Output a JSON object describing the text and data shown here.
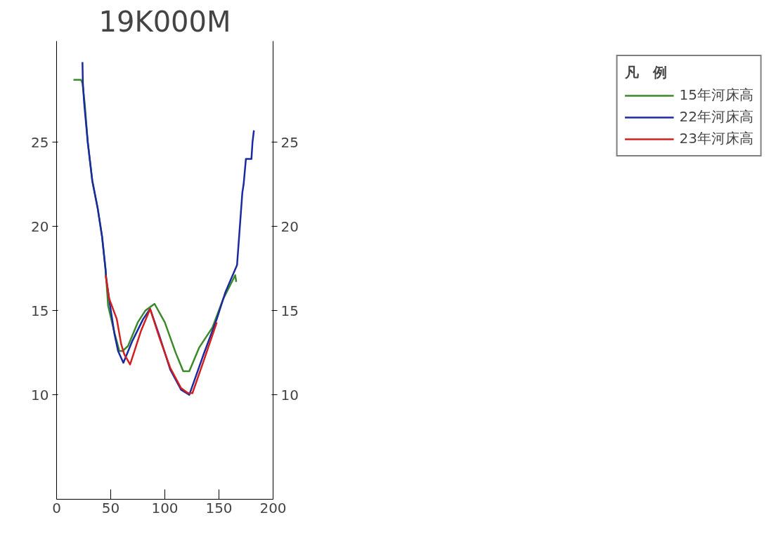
{
  "chart_data": {
    "type": "line",
    "title": "19K000M",
    "legend_title": "凡　例",
    "xlim": [
      0,
      200
    ],
    "xticks": [
      0,
      50,
      100,
      150,
      200
    ],
    "ylim": [
      3.8,
      31
    ],
    "yticks": [
      10,
      15,
      20,
      25
    ],
    "y2lim": [
      3.8,
      31
    ],
    "y2ticks": [
      10,
      15,
      20,
      25
    ],
    "grid": false,
    "legend": "right",
    "marker": "none",
    "line_style": "solid",
    "series": [
      {
        "name": "15年河床高",
        "color": "#3a8a2a",
        "x": [
          15.6,
          22.6,
          23.9,
          26.0,
          28.8,
          33.0,
          37.9,
          42.0,
          45.3,
          47.6,
          53.0,
          58.0,
          61.0,
          66.0,
          75.0,
          82.0,
          90.5,
          100.0,
          110.0,
          117.0,
          122.6,
          131.7,
          144.0,
          154.0,
          165.0,
          166.0
        ],
        "values": [
          28.7,
          28.7,
          28.5,
          27.3,
          25.0,
          22.7,
          21.1,
          19.4,
          17.4,
          15.3,
          13.8,
          12.6,
          12.6,
          12.9,
          14.3,
          15.0,
          15.4,
          14.3,
          12.5,
          11.4,
          11.4,
          12.8,
          14.0,
          15.7,
          17.1,
          16.7
        ]
      },
      {
        "name": "22年河床高",
        "color": "#1a2aa0",
        "x": [
          23.9,
          24.3,
          25.5,
          28.8,
          33.0,
          37.9,
          42.0,
          45.3,
          45.7,
          49.4,
          53.5,
          56.8,
          61.7,
          70.0,
          80.0,
          86.4,
          95.0,
          105.0,
          115.0,
          122.6,
          135.8,
          148.0,
          156.0,
          166.7,
          171.6,
          172.8,
          174.9,
          180.0,
          181.0,
          182.3
        ],
        "values": [
          29.75,
          28.5,
          27.3,
          25.0,
          22.7,
          21.1,
          19.4,
          17.4,
          17.0,
          15.3,
          13.6,
          12.6,
          11.9,
          13.2,
          14.5,
          15.1,
          13.5,
          11.5,
          10.3,
          10.0,
          12.4,
          14.5,
          16.1,
          17.7,
          22.0,
          22.5,
          24.0,
          24.0,
          25.0,
          25.7
        ]
      },
      {
        "name": "23年河床高",
        "color": "#d02020",
        "x": [
          45.3,
          48.6,
          55.6,
          59.7,
          62.6,
          67.9,
          78.0,
          86.4,
          95.0,
          105.0,
          115.0,
          121.4,
          125.5,
          135.8,
          148.0
        ],
        "values": [
          17.1,
          15.7,
          14.5,
          13.0,
          12.4,
          11.8,
          13.8,
          15.1,
          13.4,
          11.6,
          10.4,
          10.1,
          10.1,
          12.0,
          14.3
        ]
      }
    ]
  }
}
